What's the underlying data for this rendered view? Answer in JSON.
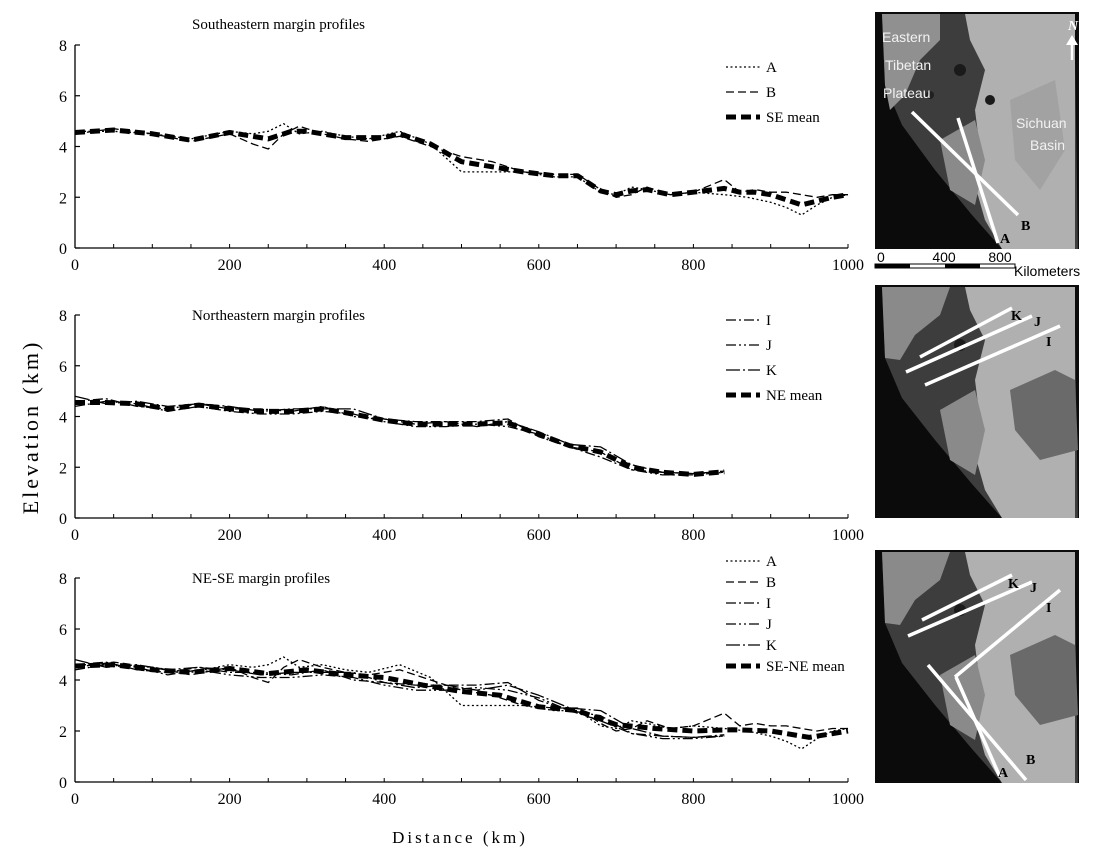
{
  "figure": {
    "y_axis_label": "Elevation (km)",
    "x_axis_label": "Distance (km)"
  },
  "chart_data": [
    {
      "type": "line",
      "title": "Southeastern margin profiles",
      "xlim": [
        0,
        1000
      ],
      "ylim": [
        0,
        8
      ],
      "xticks": [
        0,
        200,
        400,
        600,
        800,
        1000
      ],
      "yticks": [
        0,
        2,
        4,
        6,
        8
      ],
      "legend_position": "top-right",
      "series": [
        {
          "name": "A",
          "style": "dot",
          "x": [
            0,
            50,
            100,
            150,
            200,
            230,
            250,
            270,
            290,
            320,
            350,
            380,
            420,
            460,
            500,
            540,
            580,
            620,
            650,
            680,
            700,
            720,
            740,
            770,
            800,
            840,
            870,
            900,
            920,
            940,
            960,
            980,
            1000
          ],
          "y": [
            4.6,
            4.6,
            4.5,
            4.3,
            4.6,
            4.5,
            4.6,
            4.9,
            4.5,
            4.6,
            4.4,
            4.3,
            4.6,
            4.1,
            3.0,
            3.0,
            3.0,
            2.8,
            2.8,
            2.2,
            2.1,
            2.4,
            2.3,
            2.1,
            2.2,
            2.1,
            2.0,
            1.8,
            1.6,
            1.3,
            1.7,
            2.0,
            2.1
          ]
        },
        {
          "name": "B",
          "style": "dash",
          "x": [
            0,
            50,
            100,
            150,
            200,
            230,
            250,
            270,
            290,
            320,
            350,
            380,
            420,
            460,
            500,
            540,
            580,
            620,
            650,
            680,
            700,
            720,
            740,
            770,
            800,
            840,
            860,
            880,
            900,
            920,
            940,
            960,
            980,
            1000
          ],
          "y": [
            4.5,
            4.7,
            4.5,
            4.2,
            4.5,
            4.1,
            3.9,
            4.5,
            4.8,
            4.5,
            4.3,
            4.2,
            4.4,
            4.0,
            3.6,
            3.4,
            3.0,
            2.9,
            2.9,
            2.3,
            2.0,
            2.1,
            2.4,
            2.1,
            2.2,
            2.7,
            2.2,
            2.3,
            2.2,
            2.2,
            2.1,
            2.0,
            2.1,
            2.1
          ]
        },
        {
          "name": "SE mean",
          "style": "thick",
          "x": [
            0,
            50,
            100,
            150,
            200,
            250,
            280,
            300,
            350,
            400,
            420,
            460,
            500,
            540,
            580,
            620,
            650,
            680,
            700,
            720,
            740,
            770,
            800,
            840,
            860,
            880,
            900,
            920,
            940,
            960,
            980,
            1000
          ],
          "y": [
            4.55,
            4.65,
            4.5,
            4.25,
            4.55,
            4.3,
            4.6,
            4.6,
            4.35,
            4.35,
            4.5,
            4.1,
            3.4,
            3.2,
            3.0,
            2.85,
            2.85,
            2.25,
            2.1,
            2.25,
            2.3,
            2.1,
            2.2,
            2.35,
            2.2,
            2.2,
            2.1,
            1.9,
            1.7,
            1.85,
            2.0,
            2.1
          ]
        }
      ]
    },
    {
      "type": "line",
      "title": "Northeastern margin profiles",
      "xlim": [
        0,
        1000
      ],
      "ylim": [
        0,
        8
      ],
      "xticks": [
        0,
        200,
        400,
        600,
        800,
        1000
      ],
      "yticks": [
        0,
        2,
        4,
        6,
        8
      ],
      "legend_position": "top-right",
      "series": [
        {
          "name": "I",
          "style": "dashdot",
          "x": [
            0,
            40,
            80,
            120,
            160,
            200,
            240,
            280,
            320,
            360,
            400,
            440,
            480,
            520,
            560,
            600,
            640,
            680,
            720,
            760,
            800,
            840
          ],
          "y": [
            4.6,
            4.7,
            4.4,
            4.3,
            4.5,
            4.3,
            4.3,
            4.2,
            4.4,
            4.0,
            3.9,
            3.8,
            3.8,
            3.8,
            3.9,
            3.2,
            2.8,
            2.4,
            1.9,
            1.8,
            1.75,
            1.8
          ]
        },
        {
          "name": "J",
          "style": "dashdotdot",
          "x": [
            0,
            40,
            80,
            120,
            160,
            200,
            240,
            280,
            320,
            360,
            400,
            440,
            480,
            520,
            560,
            600,
            640,
            680,
            720,
            760,
            800,
            840
          ],
          "y": [
            4.4,
            4.6,
            4.5,
            4.2,
            4.4,
            4.2,
            4.1,
            4.1,
            4.2,
            4.1,
            3.8,
            3.6,
            3.6,
            3.7,
            3.6,
            3.3,
            2.8,
            2.6,
            1.9,
            1.7,
            1.7,
            1.8
          ]
        },
        {
          "name": "K",
          "style": "longdashdot",
          "x": [
            0,
            40,
            80,
            120,
            160,
            200,
            240,
            280,
            320,
            360,
            400,
            440,
            480,
            520,
            560,
            600,
            640,
            680,
            720,
            760,
            800,
            840
          ],
          "y": [
            4.8,
            4.5,
            4.6,
            4.4,
            4.5,
            4.4,
            4.2,
            4.3,
            4.3,
            4.3,
            3.9,
            3.7,
            3.8,
            3.6,
            3.8,
            3.4,
            2.9,
            2.8,
            2.1,
            1.8,
            1.75,
            1.85
          ]
        },
        {
          "name": "NE mean",
          "style": "thick",
          "x": [
            0,
            40,
            80,
            120,
            160,
            200,
            240,
            280,
            320,
            360,
            400,
            440,
            480,
            520,
            560,
            600,
            640,
            680,
            720,
            760,
            800,
            840
          ],
          "y": [
            4.55,
            4.55,
            4.5,
            4.3,
            4.45,
            4.3,
            4.2,
            4.2,
            4.3,
            4.1,
            3.85,
            3.7,
            3.7,
            3.7,
            3.75,
            3.3,
            2.85,
            2.6,
            2.0,
            1.8,
            1.72,
            1.82
          ]
        }
      ]
    },
    {
      "type": "line",
      "title": "NE-SE margin profiles",
      "xlim": [
        0,
        1000
      ],
      "ylim": [
        0,
        8
      ],
      "xticks": [
        0,
        200,
        400,
        600,
        800,
        1000
      ],
      "yticks": [
        0,
        2,
        4,
        6,
        8
      ],
      "legend_position": "top-right",
      "series": [
        {
          "name": "A",
          "style": "dot",
          "x": [
            0,
            50,
            100,
            150,
            200,
            230,
            250,
            270,
            290,
            320,
            350,
            380,
            420,
            460,
            500,
            540,
            580,
            620,
            650,
            680,
            700,
            720,
            740,
            770,
            800,
            840,
            870,
            900,
            920,
            940,
            960,
            980,
            1000
          ],
          "y": [
            4.6,
            4.6,
            4.5,
            4.3,
            4.6,
            4.5,
            4.6,
            4.9,
            4.5,
            4.6,
            4.4,
            4.3,
            4.6,
            4.1,
            3.0,
            3.0,
            3.0,
            2.8,
            2.8,
            2.2,
            2.1,
            2.4,
            2.3,
            2.1,
            2.2,
            2.1,
            2.0,
            1.8,
            1.6,
            1.3,
            1.7,
            2.0,
            2.1
          ]
        },
        {
          "name": "B",
          "style": "dash",
          "x": [
            0,
            50,
            100,
            150,
            200,
            230,
            250,
            270,
            290,
            320,
            350,
            380,
            420,
            460,
            500,
            540,
            580,
            620,
            650,
            680,
            700,
            720,
            740,
            770,
            800,
            840,
            860,
            880,
            900,
            920,
            940,
            960,
            980,
            1000
          ],
          "y": [
            4.5,
            4.7,
            4.5,
            4.2,
            4.5,
            4.1,
            3.9,
            4.5,
            4.8,
            4.5,
            4.3,
            4.2,
            4.4,
            4.0,
            3.6,
            3.4,
            3.0,
            2.9,
            2.9,
            2.3,
            2.0,
            2.1,
            2.4,
            2.1,
            2.2,
            2.7,
            2.2,
            2.3,
            2.2,
            2.2,
            2.1,
            2.0,
            2.1,
            2.1
          ]
        },
        {
          "name": "I",
          "style": "dashdot",
          "x": [
            0,
            40,
            80,
            120,
            160,
            200,
            240,
            280,
            320,
            360,
            400,
            440,
            480,
            520,
            560,
            600,
            640,
            680,
            720,
            760,
            800,
            840
          ],
          "y": [
            4.6,
            4.7,
            4.4,
            4.3,
            4.5,
            4.3,
            4.3,
            4.2,
            4.4,
            4.0,
            3.9,
            3.8,
            3.8,
            3.8,
            3.9,
            3.2,
            2.8,
            2.4,
            1.9,
            1.8,
            1.75,
            1.8
          ]
        },
        {
          "name": "J",
          "style": "dashdotdot",
          "x": [
            0,
            40,
            80,
            120,
            160,
            200,
            240,
            280,
            320,
            360,
            400,
            440,
            480,
            520,
            560,
            600,
            640,
            680,
            720,
            760,
            800,
            840
          ],
          "y": [
            4.4,
            4.6,
            4.5,
            4.2,
            4.4,
            4.2,
            4.1,
            4.1,
            4.2,
            4.1,
            3.8,
            3.6,
            3.6,
            3.7,
            3.6,
            3.3,
            2.8,
            2.6,
            1.9,
            1.7,
            1.7,
            1.8
          ]
        },
        {
          "name": "K",
          "style": "longdashdot",
          "x": [
            0,
            40,
            80,
            120,
            160,
            200,
            240,
            280,
            320,
            360,
            400,
            440,
            480,
            520,
            560,
            600,
            640,
            680,
            720,
            760,
            800,
            840
          ],
          "y": [
            4.8,
            4.5,
            4.6,
            4.4,
            4.5,
            4.4,
            4.2,
            4.3,
            4.3,
            4.3,
            3.9,
            3.7,
            3.8,
            3.6,
            3.8,
            3.4,
            2.9,
            2.8,
            2.1,
            1.8,
            1.75,
            1.85
          ]
        },
        {
          "name": "SE-NE mean",
          "style": "thick",
          "x": [
            0,
            50,
            100,
            150,
            200,
            250,
            300,
            350,
            400,
            450,
            500,
            550,
            600,
            650,
            700,
            750,
            800,
            850,
            900,
            950,
            1000
          ],
          "y": [
            4.55,
            4.6,
            4.4,
            4.3,
            4.45,
            4.25,
            4.4,
            4.2,
            4.1,
            3.8,
            3.55,
            3.4,
            2.95,
            2.8,
            2.25,
            2.1,
            2.0,
            2.05,
            2.0,
            1.75,
            2.0
          ]
        }
      ]
    }
  ],
  "maps": {
    "map1": {
      "labels": [
        "Eastern",
        "Tibetan",
        "Plateau",
        "Sichuan",
        "Basin",
        "N",
        "A",
        "B"
      ],
      "scale_ticks": [
        "0",
        "400",
        "800"
      ],
      "scale_unit": "Kilometers"
    },
    "map2": {
      "labels": [
        "K",
        "J",
        "I"
      ]
    },
    "map3": {
      "labels": [
        "K",
        "J",
        "I",
        "A",
        "B"
      ]
    }
  },
  "colors": {
    "map_background": "#0b0b0b",
    "plateau_dark": "#3d3d3d",
    "plateau_mid": "#8c8c8c",
    "basin_light": "#b4b4b4",
    "profile_lines": "#ffffff"
  }
}
